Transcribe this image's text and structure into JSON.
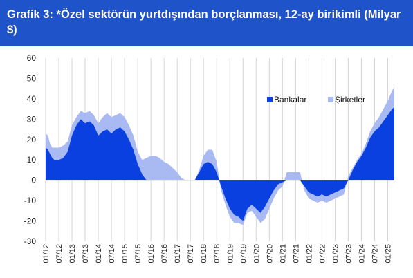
{
  "title": "Grafik 3: *Özel sektörün yurtdışından borçlanması, 12-ay birikimli (Milyar $)",
  "chart_data": {
    "type": "area",
    "title": "Grafik 3: *Özel sektörün yurtdışından borçlanması, 12-ay birikimli (Milyar $)",
    "xlabel": "",
    "ylabel": "",
    "ylim": [
      -30,
      60
    ],
    "yticks": [
      -30,
      -20,
      -10,
      0,
      10,
      20,
      30,
      40,
      50,
      60
    ],
    "xticks": [
      "01/12",
      "07/12",
      "01/13",
      "07/13",
      "01/14",
      "07/14",
      "01/15",
      "07/15",
      "01/16",
      "07/16",
      "01/17",
      "07/17",
      "01/18",
      "07/18",
      "01/19",
      "07/19",
      "01/20",
      "07/20",
      "01/21",
      "07/21",
      "01/22",
      "07/22",
      "01/23",
      "07/23",
      "01/24",
      "07/24",
      "01/25"
    ],
    "x_start": "01/12",
    "x_end": "04/25",
    "grid": "vertical",
    "legend": "top-right",
    "stacked": true,
    "series": [
      {
        "name": "Bankalar",
        "color": "#0a3fe0",
        "anchors": [
          [
            0,
            16
          ],
          [
            1,
            15
          ],
          [
            2,
            13
          ],
          [
            3,
            11
          ],
          [
            4,
            10
          ],
          [
            6,
            10
          ],
          [
            8,
            11
          ],
          [
            10,
            14
          ],
          [
            12,
            22
          ],
          [
            14,
            27
          ],
          [
            16,
            30
          ],
          [
            18,
            28
          ],
          [
            20,
            29
          ],
          [
            22,
            27
          ],
          [
            24,
            22
          ],
          [
            26,
            24
          ],
          [
            28,
            25
          ],
          [
            30,
            23
          ],
          [
            32,
            25
          ],
          [
            34,
            26
          ],
          [
            36,
            24
          ],
          [
            38,
            20
          ],
          [
            40,
            15
          ],
          [
            42,
            8
          ],
          [
            44,
            3
          ],
          [
            46,
            0
          ],
          [
            48,
            0
          ],
          [
            50,
            0
          ],
          [
            52,
            0
          ],
          [
            54,
            0
          ],
          [
            56,
            0
          ],
          [
            58,
            0
          ],
          [
            60,
            0
          ],
          [
            62,
            0
          ],
          [
            64,
            0
          ],
          [
            66,
            0
          ],
          [
            68,
            0
          ],
          [
            70,
            4
          ],
          [
            72,
            8
          ],
          [
            74,
            9
          ],
          [
            76,
            8
          ],
          [
            78,
            4
          ],
          [
            80,
            -3
          ],
          [
            82,
            -9
          ],
          [
            84,
            -14
          ],
          [
            86,
            -17
          ],
          [
            88,
            -18
          ],
          [
            90,
            -20
          ],
          [
            92,
            -14
          ],
          [
            94,
            -12
          ],
          [
            96,
            -14
          ],
          [
            98,
            -16
          ],
          [
            100,
            -13
          ],
          [
            102,
            -9
          ],
          [
            104,
            -5
          ],
          [
            106,
            -2
          ],
          [
            108,
            -1
          ],
          [
            110,
            0
          ],
          [
            112,
            0
          ],
          [
            114,
            0
          ],
          [
            116,
            0
          ],
          [
            118,
            -3
          ],
          [
            120,
            -6
          ],
          [
            122,
            -7
          ],
          [
            124,
            -8
          ],
          [
            126,
            -7
          ],
          [
            128,
            -8
          ],
          [
            130,
            -7
          ],
          [
            132,
            -6
          ],
          [
            134,
            -5
          ],
          [
            136,
            -4
          ],
          [
            138,
            0
          ],
          [
            140,
            5
          ],
          [
            142,
            9
          ],
          [
            144,
            12
          ],
          [
            146,
            16
          ],
          [
            148,
            21
          ],
          [
            150,
            24
          ],
          [
            152,
            26
          ],
          [
            154,
            29
          ],
          [
            156,
            32
          ],
          [
            158,
            35
          ],
          [
            159,
            36
          ]
        ]
      },
      {
        "name": "Şirketler",
        "color": "#a9b9f2",
        "anchors": [
          [
            0,
            7
          ],
          [
            1,
            7
          ],
          [
            2,
            5
          ],
          [
            3,
            5
          ],
          [
            4,
            6
          ],
          [
            6,
            6
          ],
          [
            8,
            6
          ],
          [
            10,
            5
          ],
          [
            12,
            5
          ],
          [
            14,
            4
          ],
          [
            16,
            4
          ],
          [
            18,
            5
          ],
          [
            20,
            5
          ],
          [
            22,
            5
          ],
          [
            24,
            6
          ],
          [
            26,
            7
          ],
          [
            28,
            8
          ],
          [
            30,
            8
          ],
          [
            32,
            7
          ],
          [
            34,
            7
          ],
          [
            36,
            7
          ],
          [
            38,
            7
          ],
          [
            40,
            7
          ],
          [
            42,
            6
          ],
          [
            44,
            7
          ],
          [
            46,
            11
          ],
          [
            48,
            12
          ],
          [
            50,
            12
          ],
          [
            52,
            11
          ],
          [
            54,
            9
          ],
          [
            56,
            8
          ],
          [
            58,
            6
          ],
          [
            60,
            4
          ],
          [
            62,
            1
          ],
          [
            64,
            0
          ],
          [
            66,
            0
          ],
          [
            68,
            0
          ],
          [
            70,
            1
          ],
          [
            72,
            4
          ],
          [
            74,
            6
          ],
          [
            76,
            7
          ],
          [
            78,
            5
          ],
          [
            80,
            -2
          ],
          [
            82,
            -3
          ],
          [
            84,
            -4
          ],
          [
            86,
            -4
          ],
          [
            88,
            -3
          ],
          [
            90,
            -2
          ],
          [
            92,
            -2
          ],
          [
            94,
            -3
          ],
          [
            96,
            -4
          ],
          [
            98,
            -5
          ],
          [
            100,
            -6
          ],
          [
            102,
            -5
          ],
          [
            104,
            -4
          ],
          [
            106,
            -3
          ],
          [
            108,
            -2
          ],
          [
            110,
            4
          ],
          [
            112,
            4
          ],
          [
            114,
            4
          ],
          [
            116,
            4
          ],
          [
            118,
            -2
          ],
          [
            120,
            -3
          ],
          [
            122,
            -3
          ],
          [
            124,
            -3
          ],
          [
            126,
            -3
          ],
          [
            128,
            -3
          ],
          [
            130,
            -3
          ],
          [
            132,
            -3
          ],
          [
            134,
            -3
          ],
          [
            136,
            -3
          ],
          [
            138,
            2
          ],
          [
            140,
            1
          ],
          [
            142,
            1
          ],
          [
            144,
            1
          ],
          [
            146,
            2
          ],
          [
            148,
            3
          ],
          [
            150,
            4
          ],
          [
            152,
            5
          ],
          [
            154,
            6
          ],
          [
            156,
            7
          ],
          [
            158,
            9
          ],
          [
            159,
            10
          ]
        ]
      }
    ]
  }
}
